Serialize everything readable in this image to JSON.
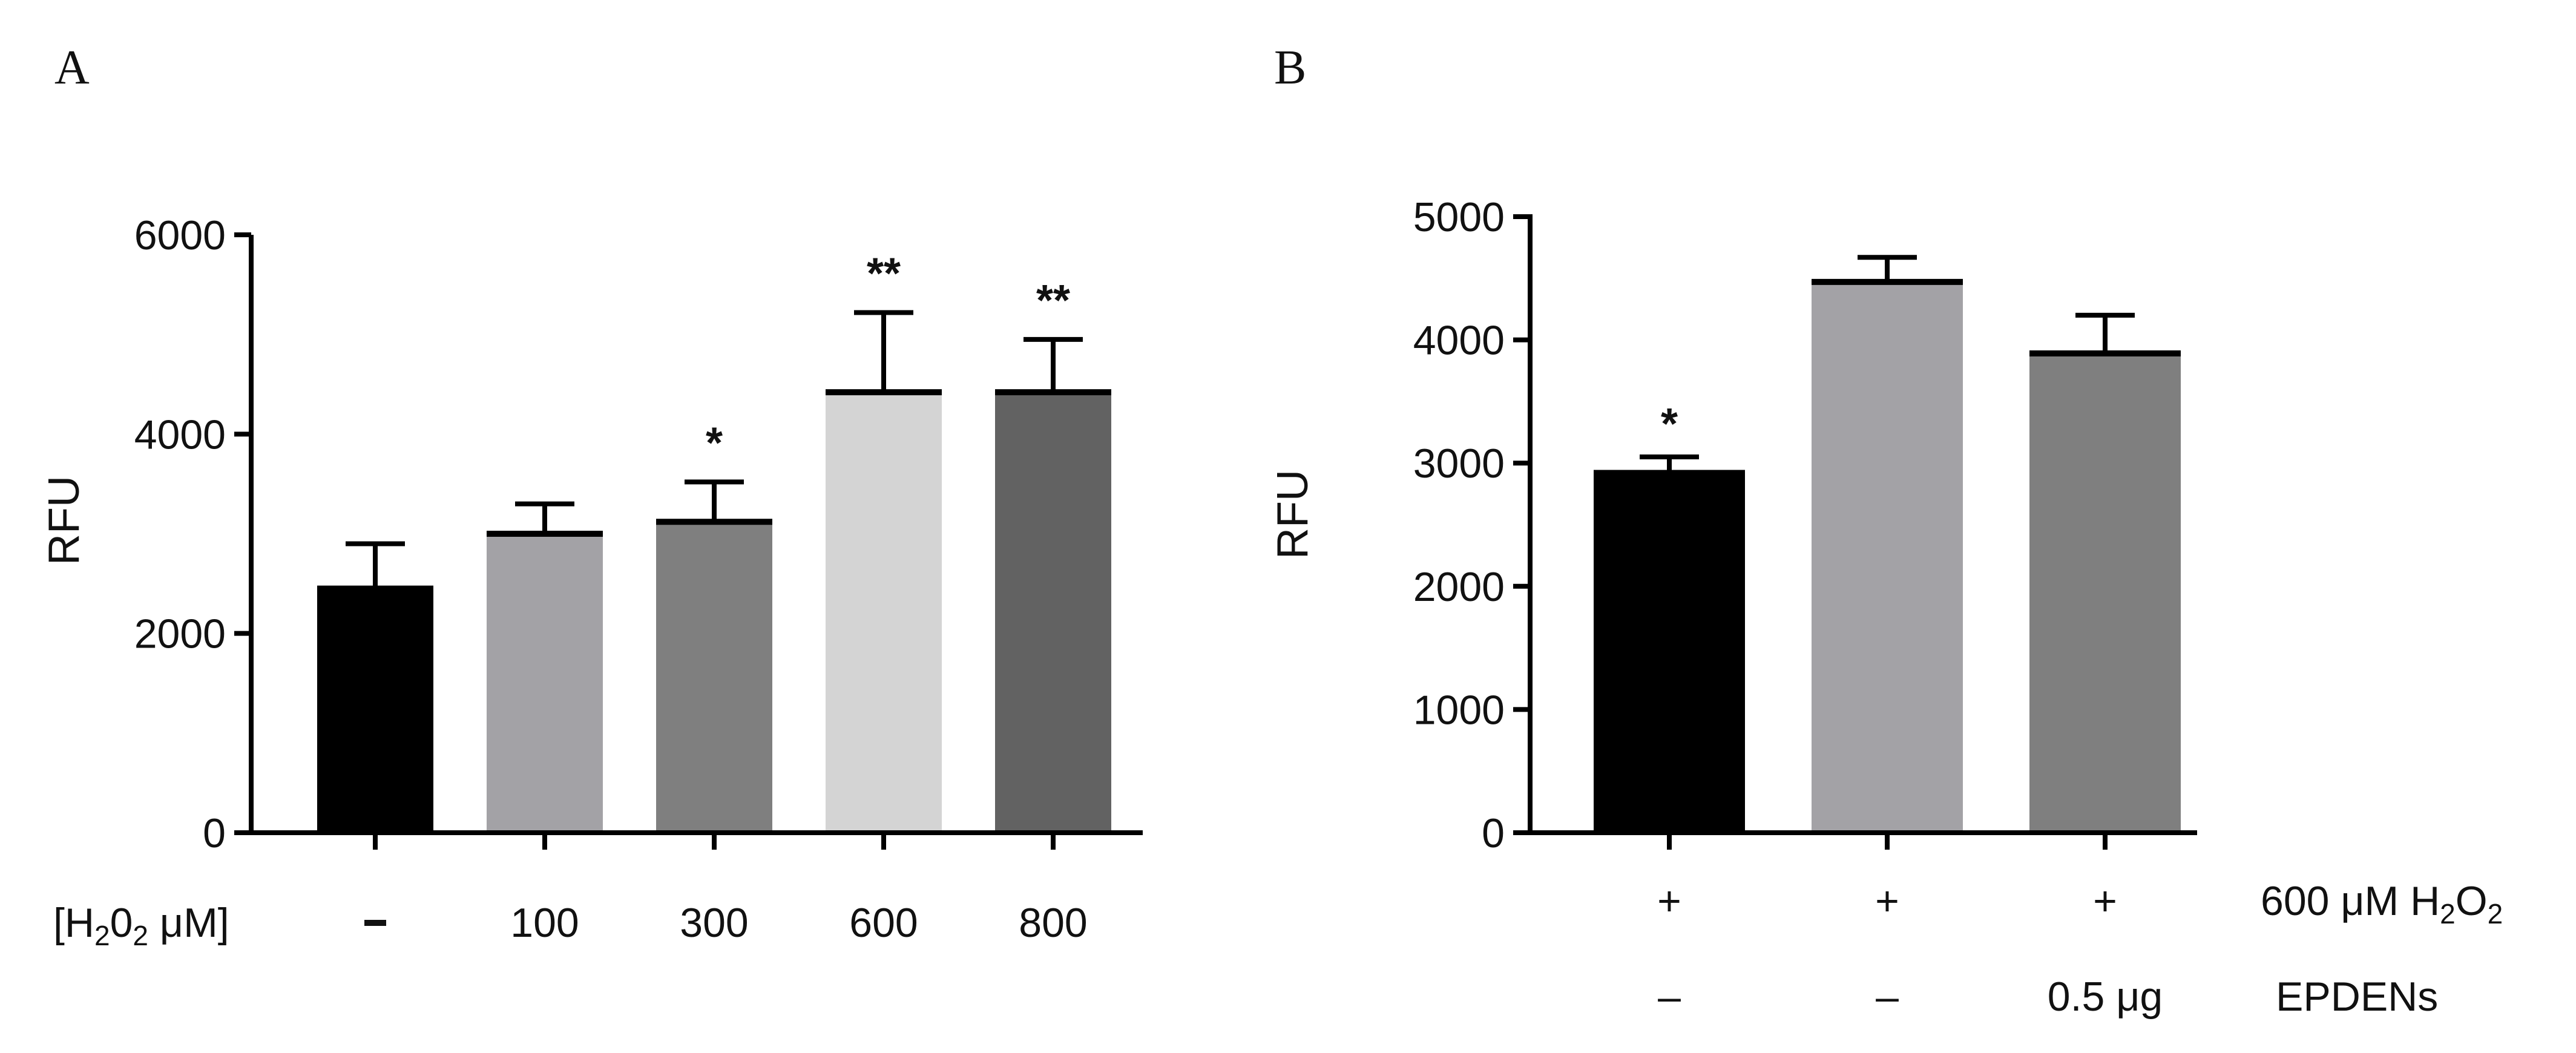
{
  "chart_data": [
    {
      "panel": "A",
      "type": "bar",
      "ylabel": "RFU",
      "xlabel": "",
      "ylim": [
        0,
        6000
      ],
      "yticks": [
        "0",
        "2000",
        "4000",
        "6000"
      ],
      "row_labels": [
        "[H2O2 μM]"
      ],
      "categories": [
        "–",
        "100",
        "300",
        "600",
        "800"
      ],
      "values": [
        2450,
        3000,
        3120,
        4420,
        4420
      ],
      "errors": [
        450,
        300,
        400,
        800,
        530
      ],
      "colors": [
        "#000000",
        "#a3a2a6",
        "#7f7f7f",
        "#d4d4d4",
        "#626262"
      ],
      "significance": [
        "",
        "",
        "*",
        "**",
        "**"
      ]
    },
    {
      "panel": "B",
      "type": "bar",
      "ylabel": "RFU",
      "xlabel": "",
      "ylim": [
        0,
        5000
      ],
      "yticks": [
        "0",
        "1000",
        "2000",
        "3000",
        "4000",
        "5000"
      ],
      "row_labels": [
        "600 μM H2O2",
        "EPDENs"
      ],
      "row_values": [
        [
          "+",
          "+",
          "+"
        ],
        [
          "–",
          "–",
          "0.5 μg"
        ]
      ],
      "values": [
        2920,
        4470,
        3890
      ],
      "errors": [
        130,
        200,
        310
      ],
      "colors": [
        "#000000",
        "#a3a2a6",
        "#7f7f7f"
      ],
      "significance": [
        "*",
        "",
        ""
      ]
    }
  ]
}
